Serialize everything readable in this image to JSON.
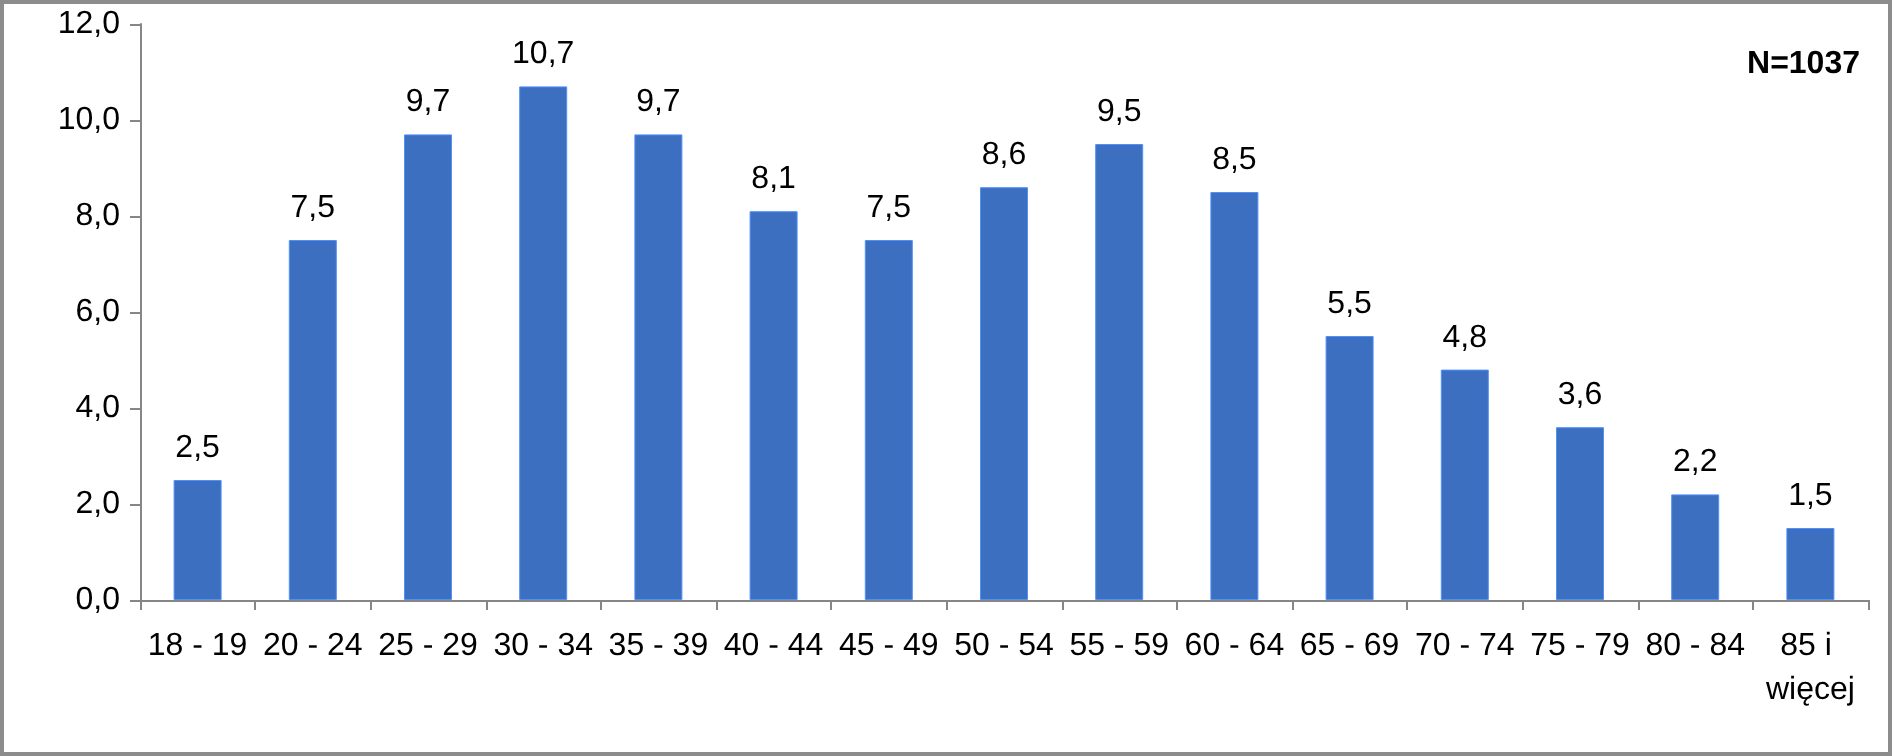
{
  "chart_data": {
    "type": "bar",
    "categories": [
      "18 - 19",
      "20 - 24",
      "25 - 29",
      "30 - 34",
      "35 - 39",
      "40 - 44",
      "45 - 49",
      "50 - 54",
      "55 - 59",
      "60 - 64",
      "65 - 69",
      "70 - 74",
      "75 - 79",
      "80 - 84",
      "85 i więcej"
    ],
    "values": [
      2.5,
      7.5,
      9.7,
      10.7,
      9.7,
      8.1,
      7.5,
      8.6,
      9.5,
      8.5,
      5.5,
      4.8,
      3.6,
      2.2,
      1.5
    ],
    "value_labels": [
      "2,5",
      "7,5",
      "9,7",
      "10,7",
      "9,7",
      "8,1",
      "7,5",
      "8,6",
      "9,5",
      "8,5",
      "5,5",
      "4,8",
      "3,6",
      "2,2",
      "1,5"
    ],
    "color": "#3d6fc0",
    "ylim": [
      0,
      12
    ],
    "yticks": [
      {
        "value": 0,
        "label": "0,0"
      },
      {
        "value": 2,
        "label": "2,0"
      },
      {
        "value": 4,
        "label": "4,0"
      },
      {
        "value": 6,
        "label": "6,0"
      },
      {
        "value": 8,
        "label": "8,0"
      },
      {
        "value": 10,
        "label": "10,0"
      },
      {
        "value": 12,
        "label": "12,0"
      }
    ],
    "annotations": [
      "N=1037"
    ],
    "grid": false
  }
}
